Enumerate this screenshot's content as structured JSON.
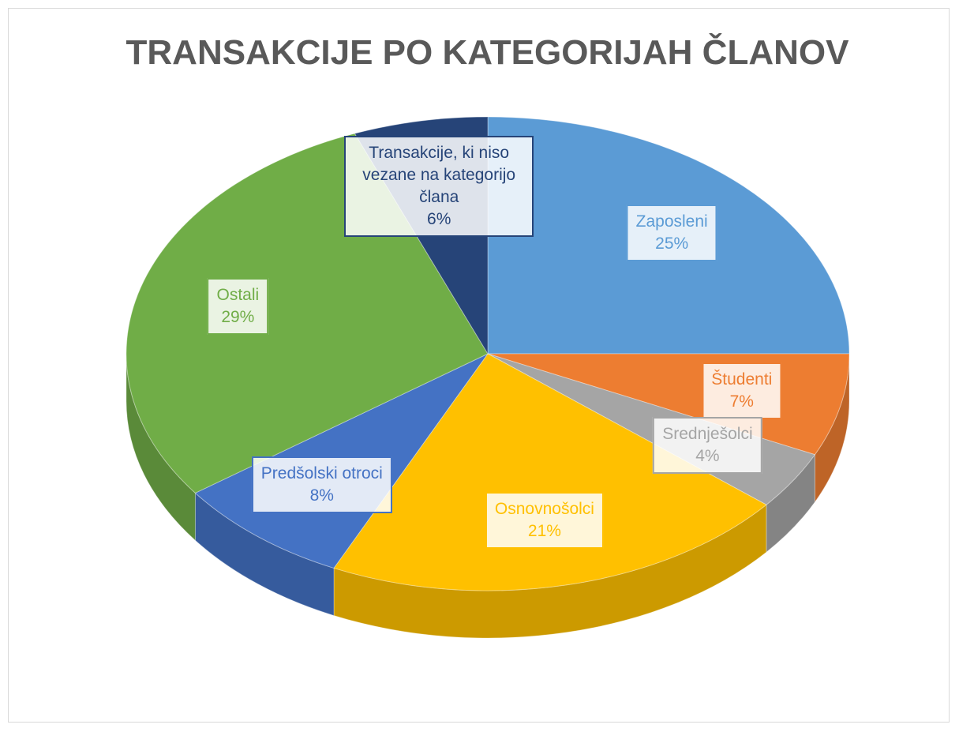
{
  "chart_data": {
    "type": "pie",
    "title": "TRANSAKCIJE PO KATEGORIJAH ČLANOV",
    "categories": [
      "Zaposleni",
      "Študenti",
      "Srednješolci",
      "Osnovnošolci",
      "Predšolski otroci",
      "Ostali",
      "Transakcije, ki niso vezane na kategorijo člana"
    ],
    "values": [
      25,
      7,
      4,
      21,
      8,
      29,
      6
    ],
    "value_labels": [
      "25%",
      "7%",
      "4%",
      "21%",
      "8%",
      "29%",
      "6%"
    ],
    "colors": [
      "#5b9bd5",
      "#ed7d31",
      "#a5a5a5",
      "#ffc000",
      "#4472c4",
      "#70ad47",
      "#264478"
    ]
  }
}
